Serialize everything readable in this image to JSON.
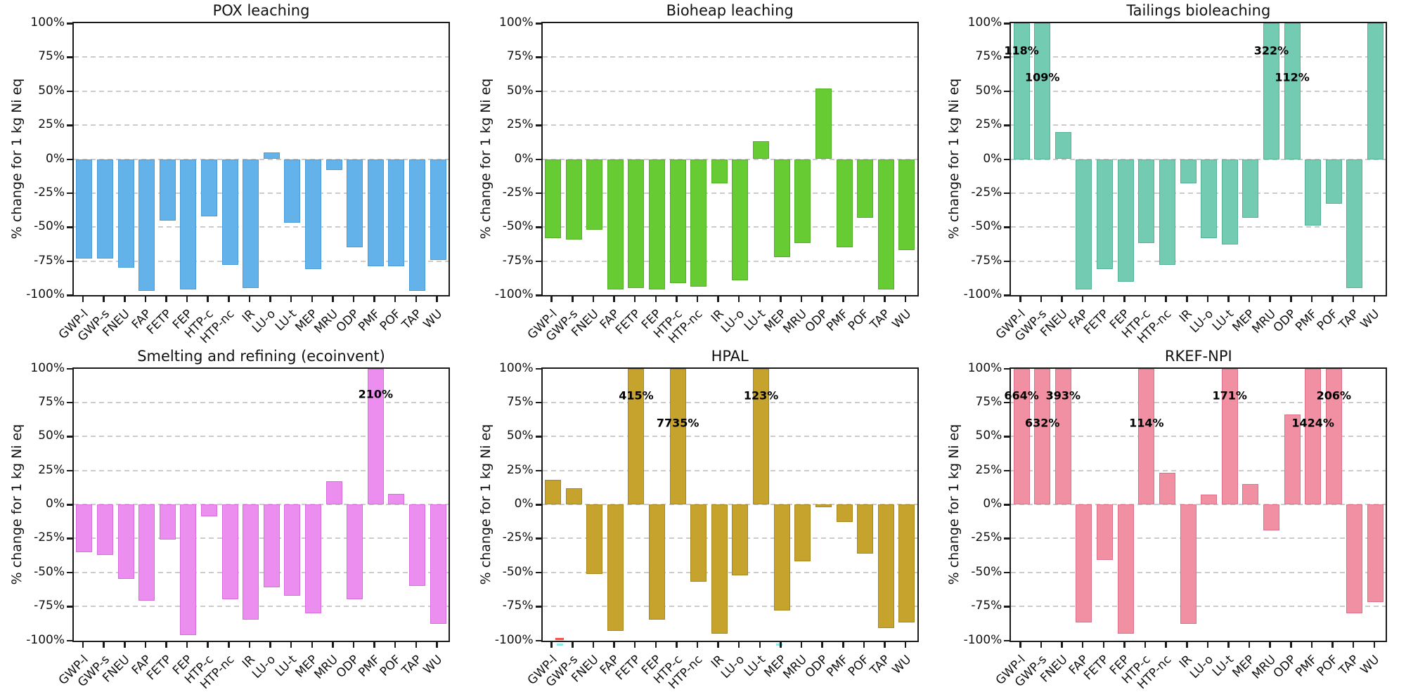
{
  "figure": {
    "background": "#ffffff",
    "spine_color": "#1a1a1a",
    "grid_color": "#cccccc",
    "ytick_values": [
      100,
      75,
      50,
      25,
      0,
      -25,
      -50,
      -75,
      -100
    ],
    "ytick_labels": [
      "100%",
      "75%",
      "50%",
      "25%",
      "0%",
      "-25%",
      "-50%",
      "-75%",
      "-100%"
    ]
  },
  "chart_data": [
    {
      "type": "bar",
      "title": "POX leaching",
      "ylabel": "% change for 1 kg Ni eq",
      "ylim": [
        -100,
        100
      ],
      "grid": true,
      "bar_color": "#64b2ea",
      "bar_edge_color": "#4a9cd9",
      "categories": [
        "GWP-l",
        "GWP-s",
        "FNEU",
        "FAP",
        "FETP",
        "FEP",
        "HTP-c",
        "HTP-nc",
        "IR",
        "LU-o",
        "LU-t",
        "MEP",
        "MRU",
        "ODP",
        "PMF",
        "POF",
        "TAP",
        "WU"
      ],
      "values": [
        -73,
        -73,
        -80,
        -97,
        -45,
        -96,
        -42,
        -78,
        -95,
        5,
        -47,
        -81,
        -8,
        -65,
        -79,
        -79,
        -97,
        -74
      ],
      "clip_annotations": []
    },
    {
      "type": "bar",
      "title": "Bioheap leaching",
      "ylabel": "% change for 1 kg Ni eq",
      "ylim": [
        -100,
        100
      ],
      "grid": true,
      "bar_color": "#67cb33",
      "bar_edge_color": "#52b122",
      "categories": [
        "GWP-l",
        "GWP-s",
        "FNEU",
        "FAP",
        "FETP",
        "FEP",
        "HTP-c",
        "HTP-nc",
        "IR",
        "LU-o",
        "LU-t",
        "MEP",
        "MRU",
        "ODP",
        "PMF",
        "POF",
        "TAP",
        "WU"
      ],
      "values": [
        -58,
        -59,
        -52,
        -96,
        -95,
        -96,
        -91,
        -94,
        -18,
        -89,
        13,
        -72,
        -62,
        52,
        -65,
        -43,
        -96,
        -67
      ],
      "clip_annotations": []
    },
    {
      "type": "bar",
      "title": "Tailings bioleaching",
      "ylabel": "% change for 1 kg Ni eq",
      "ylim": [
        -100,
        100
      ],
      "grid": true,
      "bar_color": "#73cbb2",
      "bar_edge_color": "#56b297",
      "categories": [
        "GWP-l",
        "GWP-s",
        "FNEU",
        "FAP",
        "FETP",
        "FEP",
        "HTP-c",
        "HTP-nc",
        "IR",
        "LU-o",
        "LU-t",
        "MEP",
        "MRU",
        "ODP",
        "PMF",
        "POF",
        "TAP",
        "WU"
      ],
      "values": [
        118,
        109,
        20,
        -96,
        -81,
        -90,
        -62,
        -78,
        -18,
        -58,
        -63,
        -43,
        322,
        112,
        -49,
        -33,
        -95,
        100
      ],
      "clip_annotations": [
        {
          "category": "GWP-l",
          "text": "118%",
          "y_pct": 80
        },
        {
          "category": "GWP-s",
          "text": "109%",
          "y_pct": 60
        },
        {
          "category": "MRU",
          "text": "322%",
          "y_pct": 80
        },
        {
          "category": "ODP",
          "text": "112%",
          "y_pct": 60
        }
      ]
    },
    {
      "type": "bar",
      "title": "Smelting and refining (ecoinvent)",
      "ylabel": "% change for 1 kg Ni eq",
      "ylim": [
        -100,
        100
      ],
      "grid": true,
      "bar_color": "#ec8df0",
      "bar_edge_color": "#d66edb",
      "categories": [
        "GWP-l",
        "GWP-s",
        "FNEU",
        "FAP",
        "FETP",
        "FEP",
        "HTP-c",
        "HTP-nc",
        "IR",
        "LU-o",
        "LU-t",
        "MEP",
        "MRU",
        "ODP",
        "PMF",
        "POF",
        "TAP",
        "WU"
      ],
      "values": [
        -35,
        -37,
        -55,
        -71,
        -26,
        -96,
        -9,
        -70,
        -85,
        -61,
        -67,
        -80,
        17,
        -70,
        210,
        8,
        -60,
        -88
      ],
      "clip_annotations": [
        {
          "category": "PMF",
          "text": "210%",
          "y_pct": 81
        }
      ]
    },
    {
      "type": "bar",
      "title": "HPAL",
      "ylabel": "% change for 1 kg Ni eq",
      "ylim": [
        -100,
        100
      ],
      "grid": true,
      "bar_color": "#c6a32c",
      "bar_edge_color": "#a8881e",
      "categories": [
        "GWP-l",
        "GWP-s",
        "FNEU",
        "FAP",
        "FETP",
        "FEP",
        "HTP-c",
        "HTP-nc",
        "IR",
        "LU-o",
        "LU-t",
        "MEP",
        "MRU",
        "ODP",
        "PMF",
        "POF",
        "TAP",
        "WU"
      ],
      "values": [
        18,
        12,
        -51,
        -93,
        415,
        -85,
        7735,
        -57,
        -95,
        -52,
        123,
        -78,
        -42,
        -2,
        -13,
        -36,
        -91,
        -87
      ],
      "clip_annotations": [
        {
          "category": "FETP",
          "text": "415%",
          "y_pct": 80
        },
        {
          "category": "HTP-c",
          "text": "7735%",
          "y_pct": 60
        },
        {
          "category": "LU-t",
          "text": "123%",
          "y_pct": 80
        }
      ],
      "extra_marks": [
        {
          "color": "#f2564d",
          "x": 18,
          "dy": 1,
          "w": 12,
          "h": 3
        },
        {
          "color": "#8de9e6",
          "x": 20,
          "dy": -7,
          "w": 9,
          "h": 3
        },
        {
          "color": "#8de9e6",
          "x": 332,
          "dy": -7,
          "w": 9,
          "h": 3
        }
      ]
    },
    {
      "type": "bar",
      "title": "RKEF-NPI",
      "ylabel": "% change for 1 kg Ni eq",
      "ylim": [
        -100,
        100
      ],
      "grid": true,
      "bar_color": "#f190a3",
      "bar_edge_color": "#de7089",
      "categories": [
        "GWP-l",
        "GWP-s",
        "FNEU",
        "FAP",
        "FETP",
        "FEP",
        "HTP-c",
        "HTP-nc",
        "IR",
        "LU-o",
        "LU-t",
        "MEP",
        "MRU",
        "ODP",
        "PMF",
        "POF",
        "TAP",
        "WU"
      ],
      "values": [
        664,
        632,
        393,
        -87,
        -41,
        -95,
        114,
        23,
        -88,
        7,
        171,
        15,
        -19,
        66,
        1424,
        206,
        -80,
        -72
      ],
      "clip_annotations": [
        {
          "category": "GWP-l",
          "text": "664%",
          "y_pct": 80
        },
        {
          "category": "GWP-s",
          "text": "632%",
          "y_pct": 60
        },
        {
          "category": "FNEU",
          "text": "393%",
          "y_pct": 80
        },
        {
          "category": "HTP-c",
          "text": "114%",
          "y_pct": 60
        },
        {
          "category": "LU-t",
          "text": "171%",
          "y_pct": 80
        },
        {
          "category": "PMF",
          "text": "1424%",
          "y_pct": 60
        },
        {
          "category": "POF",
          "text": "206%",
          "y_pct": 80
        }
      ]
    }
  ]
}
